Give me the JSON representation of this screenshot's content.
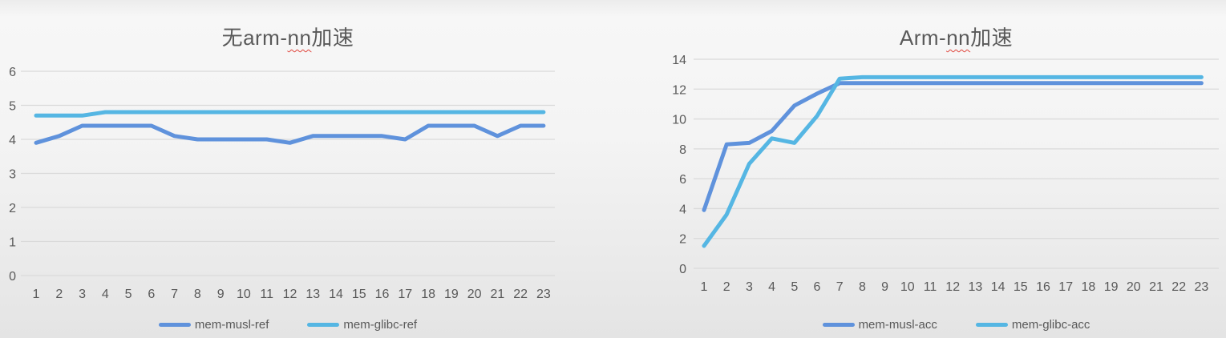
{
  "page": {
    "background_top": "#ececec",
    "background_bottom": "#e4e4e4",
    "text_color": "#595959",
    "gridline_color": "#dadada",
    "spellcheck_underline_color": "#e0433a"
  },
  "chart_data": [
    {
      "type": "line",
      "title": "无arm-nn加速",
      "title_parts": {
        "prefix": "无arm-",
        "flagged": "nn",
        "suffix": "加速"
      },
      "categories": [
        1,
        2,
        3,
        4,
        5,
        6,
        7,
        8,
        9,
        10,
        11,
        12,
        13,
        14,
        15,
        16,
        17,
        18,
        19,
        20,
        21,
        22,
        23
      ],
      "series": [
        {
          "name": "mem-musl-ref",
          "color": "#5F92DC",
          "values": [
            3.9,
            4.1,
            4.4,
            4.4,
            4.4,
            4.4,
            4.1,
            4.0,
            4.0,
            4.0,
            4.0,
            3.9,
            4.1,
            4.1,
            4.1,
            4.1,
            4.0,
            4.4,
            4.4,
            4.4,
            4.1,
            4.4,
            4.4
          ]
        },
        {
          "name": "mem-glibc-ref",
          "color": "#55B6E3",
          "values": [
            4.7,
            4.7,
            4.7,
            4.8,
            4.8,
            4.8,
            4.8,
            4.8,
            4.8,
            4.8,
            4.8,
            4.8,
            4.8,
            4.8,
            4.8,
            4.8,
            4.8,
            4.8,
            4.8,
            4.8,
            4.8,
            4.8,
            4.8
          ]
        }
      ],
      "xlabel": "",
      "ylabel": "",
      "ylim": [
        0,
        6
      ],
      "ytick_step": 1,
      "grid": true,
      "legend_position": "bottom"
    },
    {
      "type": "line",
      "title": "Arm-nn加速",
      "title_parts": {
        "prefix": "Arm-",
        "flagged": "nn",
        "suffix": "加速"
      },
      "categories": [
        1,
        2,
        3,
        4,
        5,
        6,
        7,
        8,
        9,
        10,
        11,
        12,
        13,
        14,
        15,
        16,
        17,
        18,
        19,
        20,
        21,
        22,
        23
      ],
      "series": [
        {
          "name": "mem-musl-acc",
          "color": "#5F92DC",
          "values": [
            3.9,
            8.3,
            8.4,
            9.2,
            10.9,
            11.7,
            12.4,
            12.4,
            12.4,
            12.4,
            12.4,
            12.4,
            12.4,
            12.4,
            12.4,
            12.4,
            12.4,
            12.4,
            12.4,
            12.4,
            12.4,
            12.4,
            12.4
          ]
        },
        {
          "name": "mem-glibc-acc",
          "color": "#55B6E3",
          "values": [
            1.5,
            3.6,
            7.0,
            8.7,
            8.4,
            10.2,
            12.7,
            12.8,
            12.8,
            12.8,
            12.8,
            12.8,
            12.8,
            12.8,
            12.8,
            12.8,
            12.8,
            12.8,
            12.8,
            12.8,
            12.8,
            12.8,
            12.8
          ]
        }
      ],
      "xlabel": "",
      "ylabel": "",
      "ylim": [
        0,
        14
      ],
      "ytick_step": 2,
      "grid": true,
      "legend_position": "bottom"
    }
  ]
}
